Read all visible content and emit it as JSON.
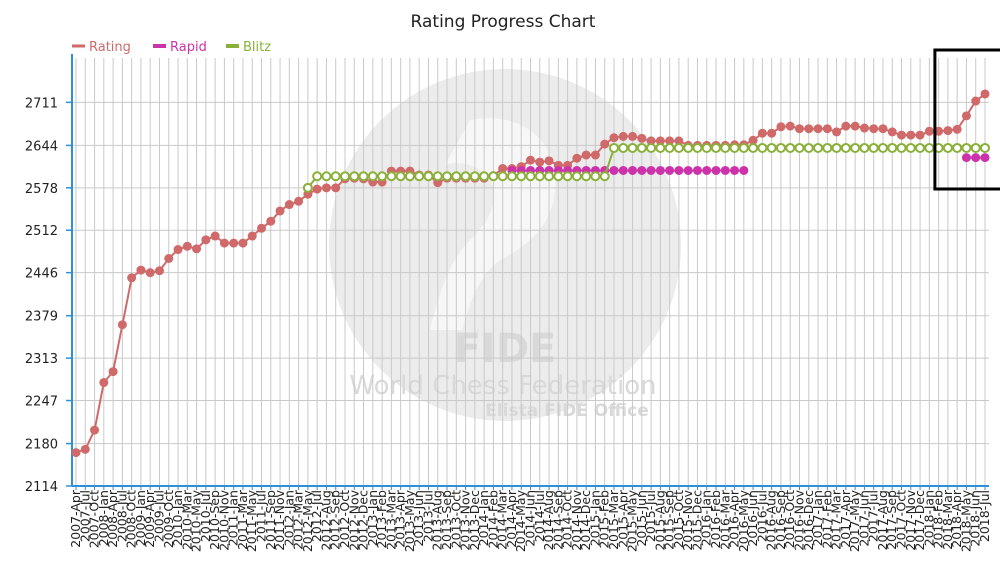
{
  "chart_data": {
    "type": "line",
    "title": "Rating Progress Chart",
    "xlabel": "",
    "ylabel": "",
    "y_ticks": [
      2114,
      2180,
      2247,
      2313,
      2379,
      2446,
      2512,
      2578,
      2644,
      2711
    ],
    "ylim": [
      2114,
      2780
    ],
    "grid": true,
    "legend_position": "top-left",
    "categories": [
      "2007-Apr",
      "2007-Jul",
      "2007-Oct",
      "2008-Jan",
      "2008-Apr",
      "2008-Jul",
      "2008-Oct",
      "2009-Jan",
      "2009-Apr",
      "2009-Jul",
      "2009-Oct",
      "2010-Jan",
      "2010-Mar",
      "2010-May",
      "2010-Jul",
      "2010-Sep",
      "2010-Nov",
      "2011-Jan",
      "2011-Mar",
      "2011-May",
      "2011-Jul",
      "2011-Sep",
      "2011-Nov",
      "2012-Jan",
      "2012-Mar",
      "2012-May",
      "2012-Jul",
      "2012-Aug",
      "2012-Sep",
      "2012-Oct",
      "2012-Nov",
      "2012-Dec",
      "2013-Jan",
      "2013-Feb",
      "2013-Mar",
      "2013-Apr",
      "2013-May",
      "2013-Jun",
      "2013-Jul",
      "2013-Aug",
      "2013-Sep",
      "2013-Oct",
      "2013-Nov",
      "2013-Dec",
      "2014-Jan",
      "2014-Feb",
      "2014-Mar",
      "2014-Apr",
      "2014-May",
      "2014-Jun",
      "2014-Jul",
      "2014-Aug",
      "2014-Sep",
      "2014-Oct",
      "2014-Nov",
      "2014-Dec",
      "2015-Jan",
      "2015-Feb",
      "2015-Mar",
      "2015-Apr",
      "2015-May",
      "2015-Jun",
      "2015-Jul",
      "2015-Aug",
      "2015-Sep",
      "2015-Oct",
      "2015-Nov",
      "2015-Dec",
      "2016-Jan",
      "2016-Feb",
      "2016-Mar",
      "2016-Apr",
      "2016-May",
      "2016-Jun",
      "2016-Jul",
      "2016-Aug",
      "2016-Sep",
      "2016-Oct",
      "2016-Nov",
      "2016-Dec",
      "2017-Jan",
      "2017-Feb",
      "2017-Mar",
      "2017-Apr",
      "2017-May",
      "2017-Jun",
      "2017-Jul",
      "2017-Aug",
      "2017-Sep",
      "2017-Oct",
      "2017-Nov",
      "2017-Dec",
      "2018-Jan",
      "2018-Feb",
      "2018-Mar",
      "2018-Apr",
      "2018-May",
      "2018-Jun",
      "2018-Jul"
    ],
    "series": [
      {
        "name": "Rating",
        "color": "#d06a6a",
        "values": [
          2166,
          2171,
          2201,
          2275,
          2292,
          2365,
          2438,
          2450,
          2446,
          2449,
          2468,
          2482,
          2487,
          2483,
          2497,
          2503,
          2492,
          2492,
          2492,
          2503,
          2515,
          2526,
          2542,
          2552,
          2557,
          2568,
          2576,
          2578,
          2578,
          2592,
          2593,
          2592,
          2587,
          2587,
          2604,
          2604,
          2604,
          2598,
          2598,
          2586,
          2593,
          2593,
          2593,
          2593,
          2593,
          2597,
          2608,
          2608,
          2611,
          2621,
          2618,
          2620,
          2613,
          2613,
          2624,
          2629,
          2629,
          2646,
          2656,
          2658,
          2658,
          2655,
          2651,
          2651,
          2651,
          2651,
          2644,
          2644,
          2644,
          2644,
          2644,
          2645,
          2645,
          2652,
          2663,
          2663,
          2673,
          2674,
          2670,
          2670,
          2670,
          2670,
          2665,
          2674,
          2674,
          2671,
          2670,
          2670,
          2665,
          2660,
          2660,
          2660,
          2666,
          2666,
          2667,
          2669,
          2690,
          2713,
          2724
        ]
      },
      {
        "name": "Rapid",
        "color": "#cc33aa",
        "values": [
          null,
          null,
          null,
          null,
          null,
          null,
          null,
          null,
          null,
          null,
          null,
          null,
          null,
          null,
          null,
          null,
          null,
          null,
          null,
          null,
          null,
          null,
          null,
          null,
          null,
          null,
          null,
          null,
          null,
          null,
          null,
          null,
          null,
          null,
          null,
          null,
          null,
          null,
          null,
          null,
          null,
          null,
          null,
          null,
          null,
          null,
          null,
          2605,
          2605,
          2605,
          2605,
          2605,
          2605,
          2605,
          2605,
          2605,
          2605,
          2605,
          2605,
          2605,
          2605,
          2605,
          2605,
          2605,
          2605,
          2605,
          2605,
          2605,
          2605,
          2605,
          2605,
          2605,
          2605,
          null,
          null,
          null,
          null,
          null,
          null,
          null,
          null,
          null,
          null,
          null,
          null,
          null,
          null,
          null,
          null,
          null,
          null,
          null,
          null,
          null,
          null,
          null,
          2625,
          2625,
          2625
        ]
      },
      {
        "name": "Blitz",
        "color": "#8ab03a",
        "values": [
          null,
          null,
          null,
          null,
          null,
          null,
          null,
          null,
          null,
          null,
          null,
          null,
          null,
          null,
          null,
          null,
          null,
          null,
          null,
          null,
          null,
          null,
          null,
          null,
          null,
          2578,
          2596,
          2596,
          2596,
          2596,
          2596,
          2596,
          2596,
          2596,
          2596,
          2596,
          2596,
          2596,
          2596,
          2596,
          2596,
          2596,
          2596,
          2596,
          2596,
          2596,
          2596,
          2596,
          2596,
          2596,
          2596,
          2596,
          2596,
          2596,
          2596,
          2596,
          2596,
          2596,
          2640,
          2640,
          2640,
          2640,
          2640,
          2640,
          2640,
          2640,
          2640,
          2640,
          2640,
          2640,
          2640,
          2640,
          2640,
          2640,
          2640,
          2640,
          2640,
          2640,
          2640,
          2640,
          2640,
          2640,
          2640,
          2640,
          2640,
          2640,
          2640,
          2640,
          2640,
          2640,
          2640,
          2640,
          2640,
          2640,
          2640,
          2640,
          2640,
          2640,
          2640
        ]
      }
    ],
    "watermark": {
      "line1": "FIDE",
      "line2": "World Chess Federation",
      "line3": "Elista FIDE Office"
    },
    "highlight_box": {
      "from": "2018-Mar",
      "to": "2018-Jul"
    }
  }
}
